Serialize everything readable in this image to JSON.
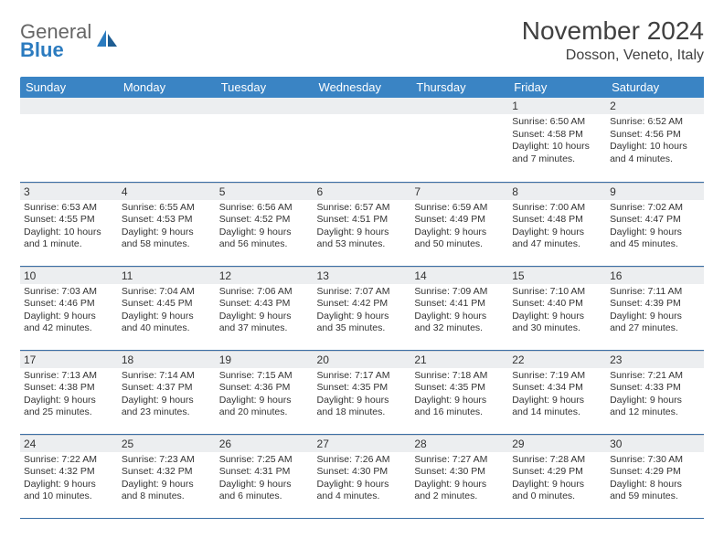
{
  "logo": {
    "word1": "General",
    "word2": "Blue"
  },
  "title": "November 2024",
  "location": "Dosson, Veneto, Italy",
  "colors": {
    "header_bg": "#3a84c4",
    "header_text": "#ffffff",
    "daynum_bg": "#eceef0",
    "border": "#3a6ea5",
    "text": "#333333",
    "logo_gray": "#666666",
    "logo_blue": "#2b7bbf"
  },
  "weekdays": [
    "Sunday",
    "Monday",
    "Tuesday",
    "Wednesday",
    "Thursday",
    "Friday",
    "Saturday"
  ],
  "weeks": [
    [
      {
        "day": "",
        "lines": []
      },
      {
        "day": "",
        "lines": []
      },
      {
        "day": "",
        "lines": []
      },
      {
        "day": "",
        "lines": []
      },
      {
        "day": "",
        "lines": []
      },
      {
        "day": "1",
        "lines": [
          "Sunrise: 6:50 AM",
          "Sunset: 4:58 PM",
          "Daylight: 10 hours and 7 minutes."
        ]
      },
      {
        "day": "2",
        "lines": [
          "Sunrise: 6:52 AM",
          "Sunset: 4:56 PM",
          "Daylight: 10 hours and 4 minutes."
        ]
      }
    ],
    [
      {
        "day": "3",
        "lines": [
          "Sunrise: 6:53 AM",
          "Sunset: 4:55 PM",
          "Daylight: 10 hours and 1 minute."
        ]
      },
      {
        "day": "4",
        "lines": [
          "Sunrise: 6:55 AM",
          "Sunset: 4:53 PM",
          "Daylight: 9 hours and 58 minutes."
        ]
      },
      {
        "day": "5",
        "lines": [
          "Sunrise: 6:56 AM",
          "Sunset: 4:52 PM",
          "Daylight: 9 hours and 56 minutes."
        ]
      },
      {
        "day": "6",
        "lines": [
          "Sunrise: 6:57 AM",
          "Sunset: 4:51 PM",
          "Daylight: 9 hours and 53 minutes."
        ]
      },
      {
        "day": "7",
        "lines": [
          "Sunrise: 6:59 AM",
          "Sunset: 4:49 PM",
          "Daylight: 9 hours and 50 minutes."
        ]
      },
      {
        "day": "8",
        "lines": [
          "Sunrise: 7:00 AM",
          "Sunset: 4:48 PM",
          "Daylight: 9 hours and 47 minutes."
        ]
      },
      {
        "day": "9",
        "lines": [
          "Sunrise: 7:02 AM",
          "Sunset: 4:47 PM",
          "Daylight: 9 hours and 45 minutes."
        ]
      }
    ],
    [
      {
        "day": "10",
        "lines": [
          "Sunrise: 7:03 AM",
          "Sunset: 4:46 PM",
          "Daylight: 9 hours and 42 minutes."
        ]
      },
      {
        "day": "11",
        "lines": [
          "Sunrise: 7:04 AM",
          "Sunset: 4:45 PM",
          "Daylight: 9 hours and 40 minutes."
        ]
      },
      {
        "day": "12",
        "lines": [
          "Sunrise: 7:06 AM",
          "Sunset: 4:43 PM",
          "Daylight: 9 hours and 37 minutes."
        ]
      },
      {
        "day": "13",
        "lines": [
          "Sunrise: 7:07 AM",
          "Sunset: 4:42 PM",
          "Daylight: 9 hours and 35 minutes."
        ]
      },
      {
        "day": "14",
        "lines": [
          "Sunrise: 7:09 AM",
          "Sunset: 4:41 PM",
          "Daylight: 9 hours and 32 minutes."
        ]
      },
      {
        "day": "15",
        "lines": [
          "Sunrise: 7:10 AM",
          "Sunset: 4:40 PM",
          "Daylight: 9 hours and 30 minutes."
        ]
      },
      {
        "day": "16",
        "lines": [
          "Sunrise: 7:11 AM",
          "Sunset: 4:39 PM",
          "Daylight: 9 hours and 27 minutes."
        ]
      }
    ],
    [
      {
        "day": "17",
        "lines": [
          "Sunrise: 7:13 AM",
          "Sunset: 4:38 PM",
          "Daylight: 9 hours and 25 minutes."
        ]
      },
      {
        "day": "18",
        "lines": [
          "Sunrise: 7:14 AM",
          "Sunset: 4:37 PM",
          "Daylight: 9 hours and 23 minutes."
        ]
      },
      {
        "day": "19",
        "lines": [
          "Sunrise: 7:15 AM",
          "Sunset: 4:36 PM",
          "Daylight: 9 hours and 20 minutes."
        ]
      },
      {
        "day": "20",
        "lines": [
          "Sunrise: 7:17 AM",
          "Sunset: 4:35 PM",
          "Daylight: 9 hours and 18 minutes."
        ]
      },
      {
        "day": "21",
        "lines": [
          "Sunrise: 7:18 AM",
          "Sunset: 4:35 PM",
          "Daylight: 9 hours and 16 minutes."
        ]
      },
      {
        "day": "22",
        "lines": [
          "Sunrise: 7:19 AM",
          "Sunset: 4:34 PM",
          "Daylight: 9 hours and 14 minutes."
        ]
      },
      {
        "day": "23",
        "lines": [
          "Sunrise: 7:21 AM",
          "Sunset: 4:33 PM",
          "Daylight: 9 hours and 12 minutes."
        ]
      }
    ],
    [
      {
        "day": "24",
        "lines": [
          "Sunrise: 7:22 AM",
          "Sunset: 4:32 PM",
          "Daylight: 9 hours and 10 minutes."
        ]
      },
      {
        "day": "25",
        "lines": [
          "Sunrise: 7:23 AM",
          "Sunset: 4:32 PM",
          "Daylight: 9 hours and 8 minutes."
        ]
      },
      {
        "day": "26",
        "lines": [
          "Sunrise: 7:25 AM",
          "Sunset: 4:31 PM",
          "Daylight: 9 hours and 6 minutes."
        ]
      },
      {
        "day": "27",
        "lines": [
          "Sunrise: 7:26 AM",
          "Sunset: 4:30 PM",
          "Daylight: 9 hours and 4 minutes."
        ]
      },
      {
        "day": "28",
        "lines": [
          "Sunrise: 7:27 AM",
          "Sunset: 4:30 PM",
          "Daylight: 9 hours and 2 minutes."
        ]
      },
      {
        "day": "29",
        "lines": [
          "Sunrise: 7:28 AM",
          "Sunset: 4:29 PM",
          "Daylight: 9 hours and 0 minutes."
        ]
      },
      {
        "day": "30",
        "lines": [
          "Sunrise: 7:30 AM",
          "Sunset: 4:29 PM",
          "Daylight: 8 hours and 59 minutes."
        ]
      }
    ]
  ]
}
